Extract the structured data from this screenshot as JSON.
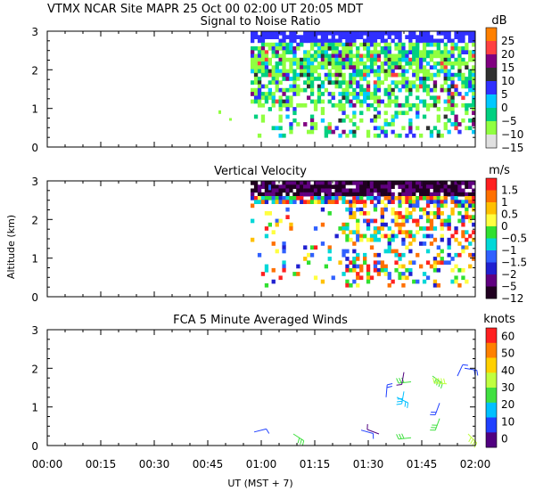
{
  "header": {
    "title_line": "VTMX   NCAR Site   MAPR 25 Oct 00   02:00 UT   20:05   MDT"
  },
  "x_axis": {
    "ticks": [
      "00:00",
      "00:15",
      "00:30",
      "00:45",
      "01:00",
      "01:15",
      "01:30",
      "01:45",
      "02:00"
    ],
    "label": "UT    (MST + 7)"
  },
  "shared_ylabel": "Altitude (km)",
  "chart_data": [
    {
      "type": "heatmap",
      "title": "Signal to Noise Ratio",
      "units": "dB",
      "x_range_minutes": [
        0,
        120
      ],
      "ylim": [
        0,
        3
      ],
      "y_ticks": [
        "0",
        "1",
        "2",
        "3"
      ],
      "colorbar": {
        "labels": [
          "25",
          "20",
          "15",
          "10",
          "5",
          "0",
          "−5",
          "−10",
          "−15"
        ],
        "colors": [
          "#ff8000",
          "#ff4040",
          "#800080",
          "#303030",
          "#3030ff",
          "#00c8ff",
          "#00d080",
          "#90ff40",
          "#e0e0e0"
        ]
      },
      "data_extent_minutes": [
        57,
        120
      ],
      "data_extent_km": [
        0.25,
        3.0
      ]
    },
    {
      "type": "heatmap",
      "title": "Vertical Velocity",
      "units": "m/s",
      "x_range_minutes": [
        0,
        120
      ],
      "ylim": [
        0,
        3
      ],
      "y_ticks": [
        "0",
        "1",
        "2",
        "3"
      ],
      "colorbar": {
        "labels": [
          "1.5",
          "1",
          "0.5",
          "0",
          "−0.5",
          "−1",
          "−1.5",
          "−2",
          "−5",
          "−12"
        ],
        "colors": [
          "#ff2020",
          "#ff7000",
          "#ffc000",
          "#ffff40",
          "#30e030",
          "#00d8d8",
          "#3060ff",
          "#2020d0",
          "#600080",
          "#200020"
        ]
      },
      "data_extent_minutes": [
        57,
        120
      ],
      "data_extent_km": [
        0.25,
        3.0
      ]
    },
    {
      "type": "scatter",
      "title": "FCA 5 Minute Averaged Winds",
      "units": "knots",
      "x_range_minutes": [
        0,
        120
      ],
      "ylim": [
        0,
        3
      ],
      "y_ticks": [
        "0",
        "1",
        "2",
        "3"
      ],
      "colorbar": {
        "labels": [
          "60",
          "50",
          "40",
          "30",
          "20",
          "10",
          "0"
        ],
        "colors": [
          "#ff2020",
          "#ff8000",
          "#ffd000",
          "#c0ff40",
          "#40e040",
          "#00c0ff",
          "#2040ff",
          "#500080"
        ]
      },
      "barbs": [
        {
          "t": 58,
          "z": 0.35,
          "speed": 10
        },
        {
          "t": 69,
          "z": 0.3,
          "speed": 30
        },
        {
          "t": 88,
          "z": 0.4,
          "speed": 10
        },
        {
          "t": 93,
          "z": 0.3,
          "speed": 5
        },
        {
          "t": 95,
          "z": 1.25,
          "speed": 15
        },
        {
          "t": 98,
          "z": 1.25,
          "speed": 20
        },
        {
          "t": 100,
          "z": 1.4,
          "speed": 25
        },
        {
          "t": 102,
          "z": 1.65,
          "speed": 30
        },
        {
          "t": 100,
          "z": 1.9,
          "speed": 5
        },
        {
          "t": 102,
          "z": 0.2,
          "speed": 30
        },
        {
          "t": 108,
          "z": 1.8,
          "speed": 35
        },
        {
          "t": 110,
          "z": 1.1,
          "speed": 15
        },
        {
          "t": 112,
          "z": 1.6,
          "speed": 45
        },
        {
          "t": 115,
          "z": 1.8,
          "speed": 10
        },
        {
          "t": 117,
          "z": 2.0,
          "speed": 15
        },
        {
          "t": 118,
          "z": 0.3,
          "speed": 40
        },
        {
          "t": 110,
          "z": 0.7,
          "speed": 30
        }
      ]
    }
  ]
}
